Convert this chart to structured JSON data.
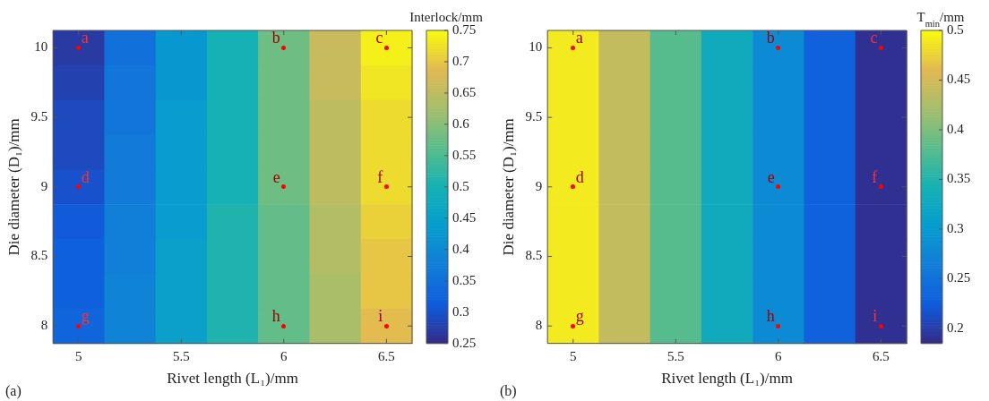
{
  "chart_data": [
    {
      "type": "heatmap",
      "xlabel": "Rivet length (L₁)/mm",
      "ylabel": "Die diameter (D₁)/mm",
      "clabel": "Interlock/mm",
      "categories": [
        "5",
        null,
        "5.5",
        null,
        "6",
        null,
        "6.5"
      ],
      "y_categories": [
        "10",
        null,
        "9.5",
        null,
        "9",
        null,
        "8.5",
        null,
        "8"
      ],
      "cells": [
        [
          0.27,
          0.35,
          0.43,
          0.5,
          0.58,
          0.66,
          0.74
        ],
        [
          0.28,
          0.36,
          0.43,
          0.5,
          0.58,
          0.66,
          0.73
        ],
        [
          0.29,
          0.36,
          0.44,
          0.5,
          0.58,
          0.65,
          0.72
        ],
        [
          0.29,
          0.37,
          0.44,
          0.5,
          0.58,
          0.65,
          0.72
        ],
        [
          0.3,
          0.37,
          0.44,
          0.5,
          0.58,
          0.65,
          0.72
        ],
        [
          0.31,
          0.38,
          0.44,
          0.51,
          0.57,
          0.64,
          0.71
        ],
        [
          0.32,
          0.38,
          0.45,
          0.51,
          0.57,
          0.64,
          0.7
        ],
        [
          0.32,
          0.39,
          0.45,
          0.51,
          0.57,
          0.63,
          0.7
        ],
        [
          0.33,
          0.39,
          0.45,
          0.51,
          0.57,
          0.63,
          0.69
        ]
      ],
      "clim": [
        0.25,
        0.75
      ],
      "cticks": [
        0.25,
        0.3,
        0.35,
        0.4,
        0.45,
        0.5,
        0.55,
        0.6,
        0.65,
        0.7,
        0.75
      ],
      "annotations": [
        "a",
        "b",
        "c",
        "d",
        "e",
        "f",
        "g",
        "h",
        "i",
        "(a)"
      ],
      "grid": false,
      "legend": false
    },
    {
      "type": "heatmap",
      "xlabel": "Rivet length (L₁)/mm",
      "ylabel": "Die diameter (D₁)/mm",
      "clabel": "T$_{min}$/mm",
      "categories": [
        "5",
        null,
        "5.5",
        null,
        "6",
        null,
        "6.5"
      ],
      "y_categories": [
        "10",
        null,
        "9.5",
        null,
        "9",
        null,
        "8.5",
        null,
        "8"
      ],
      "cells": [
        [
          0.49,
          0.44,
          0.38,
          0.33,
          0.28,
          0.23,
          0.19
        ],
        [
          0.49,
          0.44,
          0.38,
          0.33,
          0.28,
          0.23,
          0.19
        ],
        [
          0.49,
          0.44,
          0.38,
          0.33,
          0.28,
          0.23,
          0.19
        ],
        [
          0.49,
          0.44,
          0.38,
          0.33,
          0.28,
          0.23,
          0.19
        ],
        [
          0.49,
          0.44,
          0.38,
          0.33,
          0.28,
          0.23,
          0.19
        ],
        [
          0.49,
          0.44,
          0.38,
          0.33,
          0.28,
          0.23,
          0.19
        ],
        [
          0.49,
          0.44,
          0.38,
          0.33,
          0.28,
          0.23,
          0.19
        ],
        [
          0.49,
          0.44,
          0.38,
          0.33,
          0.28,
          0.23,
          0.19
        ],
        [
          0.49,
          0.44,
          0.38,
          0.33,
          0.28,
          0.23,
          0.19
        ]
      ],
      "clim": [
        0.185,
        0.5
      ],
      "cticks": [
        0.2,
        0.25,
        0.3,
        0.35,
        0.4,
        0.45,
        0.5
      ],
      "annotations": [
        "a",
        "b",
        "c",
        "d",
        "e",
        "f",
        "g",
        "h",
        "i",
        "(b)"
      ],
      "grid": false,
      "legend": false
    }
  ]
}
